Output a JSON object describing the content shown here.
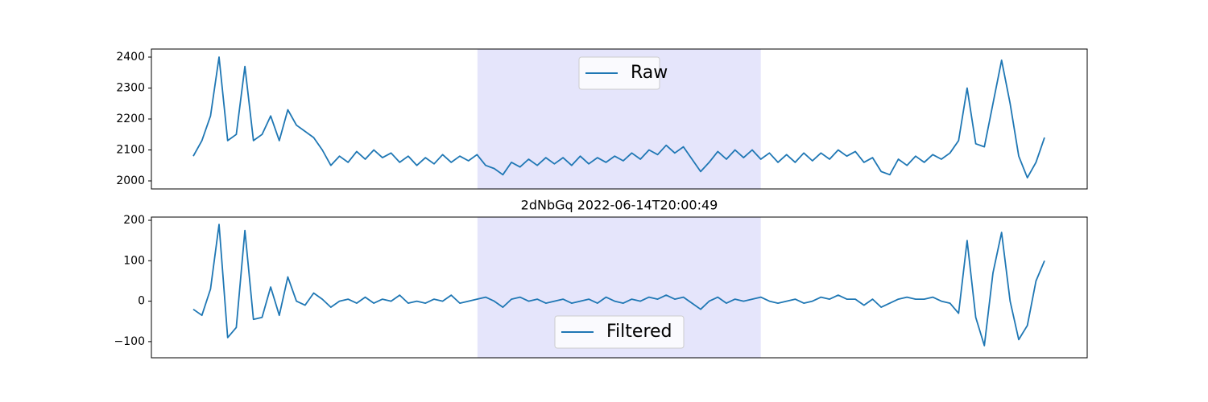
{
  "chart_data": [
    {
      "type": "line",
      "series": [
        {
          "name": "Raw",
          "color": "#1f77b4",
          "values": [
            2080,
            2130,
            2210,
            2400,
            2130,
            2150,
            2370,
            2130,
            2150,
            2210,
            2130,
            2230,
            2180,
            2160,
            2140,
            2100,
            2050,
            2080,
            2060,
            2095,
            2070,
            2100,
            2075,
            2090,
            2060,
            2080,
            2050,
            2075,
            2055,
            2085,
            2060,
            2080,
            2065,
            2085,
            2050,
            2040,
            2020,
            2060,
            2045,
            2070,
            2050,
            2075,
            2055,
            2075,
            2050,
            2080,
            2055,
            2075,
            2060,
            2080,
            2065,
            2090,
            2070,
            2100,
            2085,
            2115,
            2090,
            2110,
            2070,
            2030,
            2060,
            2095,
            2070,
            2100,
            2075,
            2100,
            2070,
            2090,
            2060,
            2085,
            2060,
            2090,
            2065,
            2090,
            2070,
            2100,
            2080,
            2095,
            2060,
            2075,
            2030,
            2020,
            2070,
            2050,
            2080,
            2060,
            2085,
            2070,
            2090,
            2130,
            2300,
            2120,
            2110,
            2250,
            2390,
            2250,
            2080,
            2010,
            2060,
            2140
          ]
        }
      ],
      "xlim": [
        -4.87,
        103.96
      ],
      "ylim": [
        1974,
        2426
      ],
      "yticks": [
        2000,
        2100,
        2200,
        2300,
        2400
      ],
      "span": [
        33.05,
        66.0
      ],
      "span_color": "#e5e5fb",
      "legend": "upper center"
    },
    {
      "type": "line",
      "title": "2dNbGq 2022-06-14T20:00:49",
      "series": [
        {
          "name": "Filtered",
          "color": "#1f77b4",
          "values": [
            -20,
            -35,
            30,
            190,
            -90,
            -65,
            175,
            -45,
            -40,
            35,
            -35,
            60,
            0,
            -10,
            20,
            5,
            -15,
            0,
            5,
            -5,
            10,
            -5,
            5,
            0,
            15,
            -5,
            0,
            -5,
            5,
            0,
            15,
            -5,
            0,
            5,
            10,
            0,
            -15,
            5,
            10,
            0,
            5,
            -5,
            0,
            5,
            -5,
            0,
            5,
            -5,
            10,
            0,
            -5,
            5,
            0,
            10,
            5,
            15,
            5,
            10,
            -5,
            -20,
            0,
            10,
            -5,
            5,
            0,
            5,
            10,
            0,
            -5,
            0,
            5,
            -5,
            0,
            10,
            5,
            15,
            5,
            5,
            -10,
            5,
            -15,
            -5,
            5,
            10,
            5,
            5,
            10,
            0,
            -5,
            -30,
            150,
            -40,
            -110,
            70,
            170,
            0,
            -95,
            -60,
            50,
            100
          ]
        }
      ],
      "xlim": [
        -4.87,
        103.96
      ],
      "ylim": [
        -140,
        208
      ],
      "yticks": [
        {
          "value": -100,
          "label": "−100"
        },
        0,
        100,
        200
      ],
      "span": [
        33.05,
        66.0
      ],
      "span_color": "#e5e5fb",
      "legend": "lower center"
    }
  ]
}
